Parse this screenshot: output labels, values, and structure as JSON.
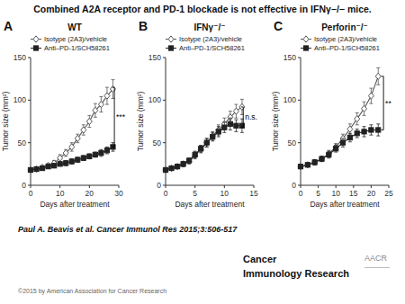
{
  "title": "Combined A2A receptor and PD-1 blockade is not effective in IFNγ−/− mice.",
  "subtitle": "Paul A. Beavis et al. Cancer Immunol Res 2015;3:506-517",
  "annotations": [
    "©2015 by American Association for Cancer Research",
    "Cancer",
    "Immunology Research",
    "AACR",
    "————"
  ],
  "chart_data": [
    {
      "type": "line",
      "title": "WT",
      "x_label": "Days after treatment",
      "y_label": "Tumor size (mm²)",
      "xlim": [
        0,
        30
      ],
      "xticks": [
        0,
        10,
        20,
        30
      ],
      "ylim": [
        0,
        150
      ],
      "yticks": [
        0,
        50,
        100,
        150
      ],
      "grid": false,
      "legend": "top-left",
      "annotations": [
        {
          "text": "A"
        },
        {
          "text": "***",
          "x": 28.5,
          "y1": 45,
          "y2": 115
        }
      ],
      "x": [
        0,
        2,
        4,
        6,
        8,
        10,
        12,
        14,
        16,
        18,
        20,
        22,
        24,
        26,
        28
      ],
      "series": [
        {
          "name": "Isotype (2A3)/vehicle",
          "color": "#555555",
          "marker": "open-diamond",
          "values": [
            18,
            19,
            21,
            23,
            26,
            32,
            38,
            45,
            55,
            65,
            75,
            88,
            95,
            105,
            113
          ],
          "yerr": [
            2,
            2,
            2,
            3,
            3,
            4,
            4,
            5,
            5,
            6,
            7,
            8,
            9,
            10,
            11
          ]
        },
        {
          "name": "Anti–PD-1/SCH58261",
          "color": "#222222",
          "marker": "square",
          "values": [
            18,
            19,
            20,
            22,
            23,
            25,
            26,
            28,
            30,
            32,
            34,
            36,
            38,
            41,
            45
          ],
          "yerr": [
            2,
            2,
            2,
            2,
            2,
            2,
            3,
            3,
            3,
            3,
            3,
            3,
            4,
            4,
            5
          ]
        }
      ]
    },
    {
      "type": "line",
      "title": "IFNγ⁻/⁻",
      "x_label": "Days after treatment",
      "y_label": "Tumor size (mm²)",
      "xlim": [
        0,
        15
      ],
      "xticks": [
        0,
        5,
        10,
        15
      ],
      "ylim": [
        0,
        150
      ],
      "yticks": [
        0,
        50,
        100,
        150
      ],
      "grid": false,
      "legend": "top-left",
      "annotations": [
        {
          "text": "B"
        },
        {
          "text": "n.s.",
          "x": 13.2,
          "y1": 68,
          "y2": 92
        }
      ],
      "x": [
        0,
        1,
        2,
        3,
        4,
        5,
        6,
        7,
        8,
        9,
        10,
        11,
        12,
        13
      ],
      "series": [
        {
          "name": "Isotype (2A3)/vehicle",
          "color": "#555555",
          "marker": "open-diamond",
          "values": [
            18,
            20,
            22,
            25,
            28,
            35,
            42,
            50,
            58,
            65,
            72,
            80,
            87,
            92
          ],
          "yerr": [
            2,
            2,
            2,
            3,
            3,
            4,
            4,
            5,
            5,
            6,
            7,
            7,
            8,
            9
          ]
        },
        {
          "name": "Anti–PD-1/SCH58261",
          "color": "#222222",
          "marker": "square",
          "values": [
            18,
            20,
            22,
            25,
            29,
            36,
            43,
            50,
            57,
            63,
            68,
            72,
            70,
            70
          ],
          "yerr": [
            2,
            2,
            2,
            3,
            3,
            4,
            4,
            5,
            5,
            6,
            6,
            7,
            7,
            8
          ]
        }
      ]
    },
    {
      "type": "line",
      "title": "Perforin⁻/⁻",
      "x_label": "Days after treatment",
      "y_label": "Tumor size (mm²)",
      "xlim": [
        0,
        25
      ],
      "xticks": [
        0,
        5,
        10,
        15,
        20,
        25
      ],
      "ylim": [
        0,
        150
      ],
      "yticks": [
        0,
        50,
        100,
        150
      ],
      "grid": false,
      "legend": "top-left",
      "annotations": [
        {
          "text": "C"
        },
        {
          "text": "**",
          "x": 23.5,
          "y1": 65,
          "y2": 128
        }
      ],
      "x": [
        0,
        2,
        4,
        6,
        8,
        10,
        12,
        14,
        16,
        18,
        20,
        22
      ],
      "series": [
        {
          "name": "Isotype (2A3)/vehicle",
          "color": "#555555",
          "marker": "open-diamond",
          "values": [
            22,
            24,
            27,
            31,
            37,
            45,
            55,
            66,
            78,
            90,
            105,
            128
          ],
          "yerr": [
            2,
            2,
            3,
            3,
            4,
            4,
            5,
            6,
            7,
            8,
            9,
            10
          ]
        },
        {
          "name": "Anti–PD-1/SCH58261",
          "color": "#222222",
          "marker": "square",
          "values": [
            22,
            24,
            27,
            31,
            36,
            43,
            50,
            56,
            61,
            63,
            65,
            65
          ],
          "yerr": [
            2,
            2,
            3,
            3,
            4,
            4,
            5,
            5,
            5,
            6,
            6,
            7
          ]
        }
      ]
    }
  ]
}
